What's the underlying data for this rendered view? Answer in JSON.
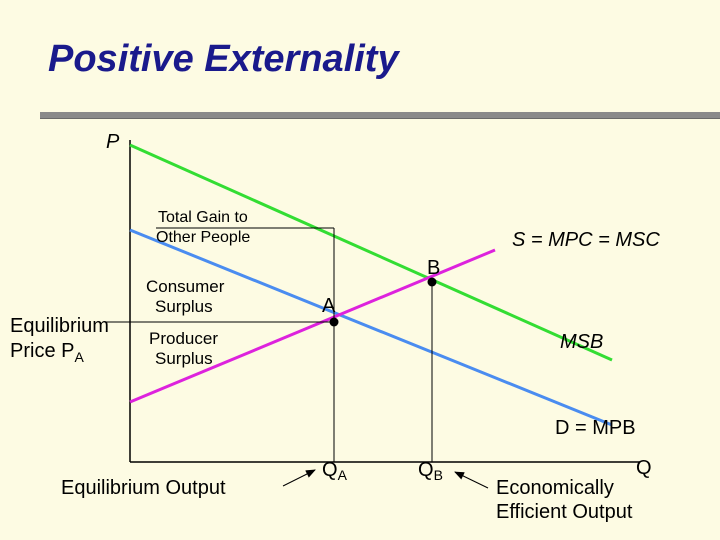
{
  "slide": {
    "title": "Positive Externality"
  },
  "colors": {
    "background": "#fdfbe3",
    "title": "#1a1a8c",
    "msb_line": "#33dd33",
    "mpb_line": "#4a8cf0",
    "supply_line": "#dd22dd",
    "axis": "#000000"
  },
  "diagram": {
    "y_axis_label": "P",
    "label_total_gain": [
      "Total Gain to",
      "Other People"
    ],
    "label_consumer_surplus": [
      "Consumer",
      "Surplus"
    ],
    "label_producer_surplus": [
      "Producer",
      "Surplus"
    ],
    "label_eq_price_line1": "Equilibrium",
    "label_eq_price_line2": "Price P",
    "label_eq_price_sub": "A",
    "label_supply": "S = MPC = MSC",
    "label_msb": "MSB",
    "label_mpb": "D = MPB",
    "point_a": "A",
    "point_b": "B",
    "label_eq_output": "Equilibrium Output",
    "qa_main": "Q",
    "qa_sub": "A",
    "qb_main": "Q",
    "qb_sub": "B",
    "q_axis_label": "Q",
    "label_efficient_line1": "Economically",
    "label_efficient_line2": "Efficient Output"
  }
}
